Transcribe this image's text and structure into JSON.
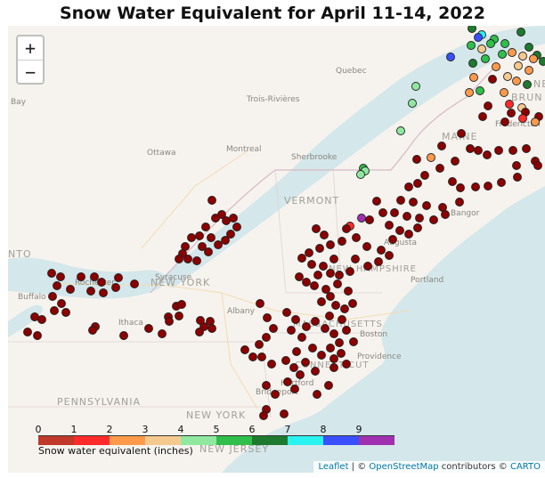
{
  "title": "Snow Water Equivalent for April 11-14, 2022",
  "zoom": {
    "in_label": "+",
    "out_label": "−"
  },
  "map_labels": {
    "states": [
      "VERMONT",
      "NEW YORK",
      "MAINE",
      "NEW HAMPSHIRE",
      "MASSACHUSETTS",
      "CONNECTICUT",
      "PENNSYLVANIA",
      "NEW JERSEY",
      "NEW YORK",
      "NB",
      "BRUN",
      "NTO"
    ],
    "cities": [
      "Quebec",
      "Trois-Rivières",
      "Montreal",
      "Ottawa",
      "Bay",
      "Sherbrooke",
      "Bangor",
      "Augusta",
      "Portland",
      "Rochester",
      "Buffalo",
      "Syracuse",
      "Ithaca",
      "Albany",
      "Boston",
      "Hartford",
      "Providence",
      "Bridgeport",
      "Fredericton"
    ]
  },
  "legend": {
    "ticks": [
      "0",
      "1",
      "2",
      "3",
      "4",
      "5",
      "6",
      "7",
      "8",
      "9"
    ],
    "colors": [
      "#c0392b",
      "#ff2a2a",
      "#ff9a4a",
      "#f5c98e",
      "#90e8a0",
      "#2fbf4a",
      "#1e7a2e",
      "#2af2f0",
      "#3a50ff",
      "#a030b0"
    ],
    "title": "Snow water equivalent (inches)"
  },
  "attribution": {
    "leaflet": "Leaflet",
    "sep": " | © ",
    "osm": "OpenStreetMap",
    "contributors": " contributors © ",
    "carto": "CARTO"
  },
  "stations_colors": {
    "dark_red": "#8b0000",
    "red": "#ff2a2a",
    "orange": "#ff9a4a",
    "tan": "#f5c98e",
    "light_green": "#90e8a0",
    "green": "#2fbf4a",
    "dark_green": "#1e7a2e",
    "cyan": "#2af2f0",
    "blue": "#3a50ff",
    "purple": "#a030b0"
  }
}
